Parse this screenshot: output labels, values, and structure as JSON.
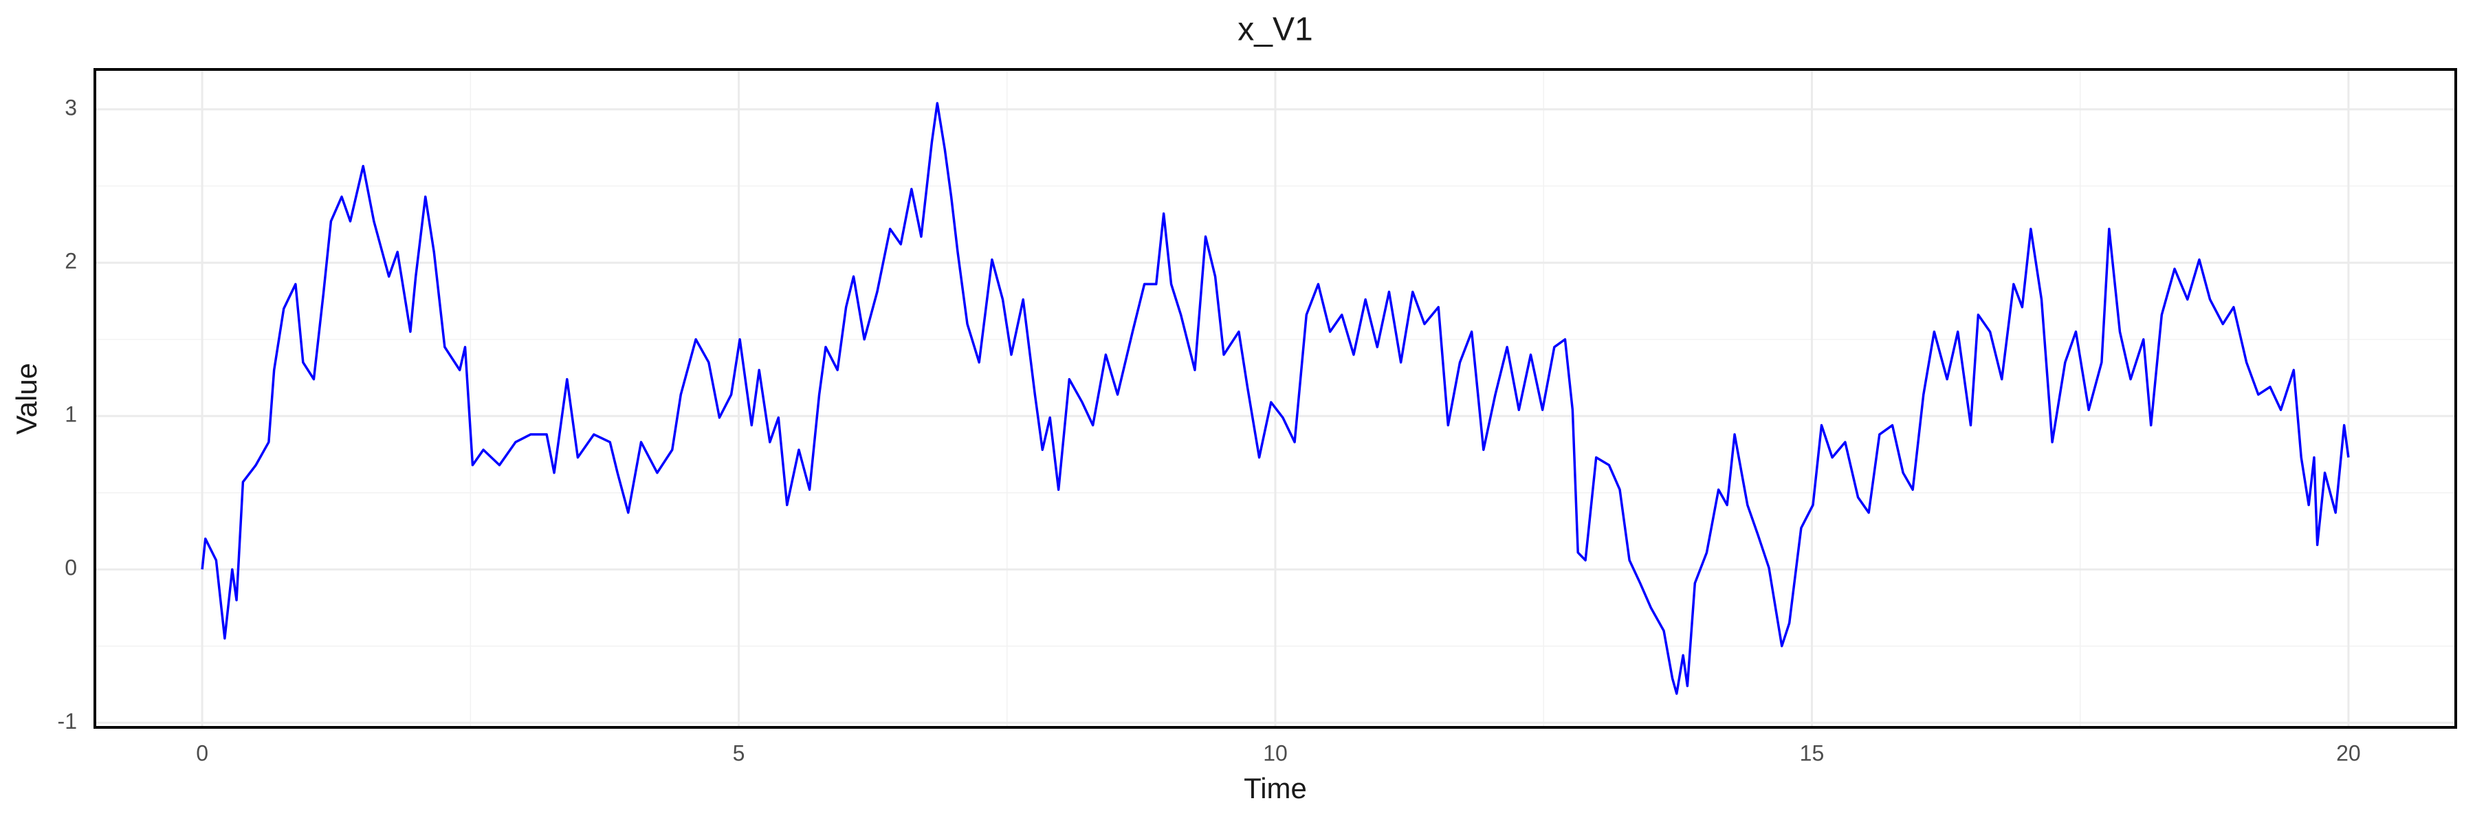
{
  "chart_data": {
    "type": "line",
    "title": "x_V1",
    "xlabel": "Time",
    "ylabel": "Value",
    "xlim": [
      -1,
      21
    ],
    "ylim": [
      -1.03,
      3.26
    ],
    "xticks": [
      0,
      5,
      10,
      15,
      20
    ],
    "yticks": [
      -1,
      0,
      1,
      2,
      3
    ],
    "xminor": [
      2.5,
      7.5,
      12.5,
      17.5
    ],
    "yminor": [
      -0.5,
      0.5,
      1.5,
      2.5
    ],
    "grid": true,
    "frame": true,
    "series": [
      {
        "name": "x_V1",
        "color": "#0000ff",
        "x": [
          0,
          0.03,
          0.13,
          0.21,
          0.28,
          0.32,
          0.38,
          0.5,
          0.62,
          0.67,
          0.76,
          0.87,
          0.94,
          1.04,
          1.13,
          1.2,
          1.3,
          1.38,
          1.5,
          1.6,
          1.74,
          1.82,
          1.94,
          1.99,
          2.08,
          2.16,
          2.26,
          2.4,
          2.45,
          2.52,
          2.62,
          2.77,
          2.92,
          3.06,
          3.21,
          3.28,
          3.4,
          3.5,
          3.65,
          3.8,
          3.87,
          3.97,
          4.09,
          4.24,
          4.38,
          4.46,
          4.6,
          4.72,
          4.82,
          4.93,
          5.01,
          5.12,
          5.19,
          5.29,
          5.37,
          5.45,
          5.56,
          5.66,
          5.75,
          5.81,
          5.92,
          6.0,
          6.07,
          6.17,
          6.29,
          6.41,
          6.51,
          6.61,
          6.7,
          6.8,
          6.85,
          6.92,
          6.98,
          7.04,
          7.13,
          7.24,
          7.36,
          7.46,
          7.54,
          7.65,
          7.76,
          7.83,
          7.9,
          7.98,
          8.08,
          8.2,
          8.3,
          8.42,
          8.53,
          8.67,
          8.78,
          8.89,
          8.96,
          9.03,
          9.12,
          9.25,
          9.35,
          9.44,
          9.52,
          9.66,
          9.74,
          9.85,
          9.96,
          10.07,
          10.18,
          10.29,
          10.4,
          10.51,
          10.62,
          10.73,
          10.84,
          10.95,
          11.06,
          11.17,
          11.28,
          11.39,
          11.52,
          11.61,
          11.72,
          11.83,
          11.94,
          12.05,
          12.16,
          12.27,
          12.38,
          12.49,
          12.6,
          12.7,
          12.77,
          12.82,
          12.89,
          12.99,
          13.11,
          13.21,
          13.3,
          13.4,
          13.5,
          13.62,
          13.7,
          13.74,
          13.8,
          13.84,
          13.91,
          14.02,
          14.13,
          14.21,
          14.28,
          14.4,
          14.5,
          14.6,
          14.72,
          14.79,
          14.9,
          15.01,
          15.09,
          15.19,
          15.31,
          15.43,
          15.53,
          15.63,
          15.75,
          15.85,
          15.94,
          16.04,
          16.14,
          16.26,
          16.36,
          16.48,
          16.55,
          16.66,
          16.77,
          16.88,
          16.96,
          17.04,
          17.14,
          17.24,
          17.36,
          17.46,
          17.58,
          17.7,
          17.77,
          17.87,
          17.97,
          18.09,
          18.16,
          18.26,
          18.38,
          18.5,
          18.61,
          18.71,
          18.83,
          18.93,
          19.05,
          19.16,
          19.27,
          19.37,
          19.49,
          19.56,
          19.63,
          19.68,
          19.71,
          19.78,
          19.88,
          19.96,
          20.0
        ],
        "values": [
          0,
          0.2,
          0.06,
          -0.45,
          0,
          -0.2,
          0.57,
          0.68,
          0.83,
          1.3,
          1.7,
          1.86,
          1.35,
          1.24,
          1.8,
          2.27,
          2.43,
          2.27,
          2.63,
          2.27,
          1.91,
          2.07,
          1.55,
          1.91,
          2.43,
          2.07,
          1.45,
          1.3,
          1.45,
          0.68,
          0.78,
          0.68,
          0.83,
          0.88,
          0.88,
          0.63,
          1.24,
          0.73,
          0.88,
          0.83,
          0.63,
          0.37,
          0.83,
          0.63,
          0.78,
          1.14,
          1.5,
          1.35,
          0.99,
          1.14,
          1.5,
          0.94,
          1.3,
          0.83,
          0.99,
          0.42,
          0.78,
          0.52,
          1.14,
          1.45,
          1.3,
          1.71,
          1.91,
          1.5,
          1.81,
          2.22,
          2.12,
          2.48,
          2.17,
          2.79,
          3.04,
          2.74,
          2.43,
          2.07,
          1.6,
          1.35,
          2.02,
          1.76,
          1.4,
          1.76,
          1.14,
          0.78,
          0.99,
          0.52,
          1.24,
          1.09,
          0.94,
          1.4,
          1.14,
          1.55,
          1.86,
          1.86,
          2.32,
          1.86,
          1.66,
          1.3,
          2.17,
          1.91,
          1.4,
          1.55,
          1.19,
          0.73,
          1.09,
          0.99,
          0.83,
          1.66,
          1.86,
          1.55,
          1.66,
          1.4,
          1.76,
          1.45,
          1.81,
          1.35,
          1.81,
          1.6,
          1.71,
          0.94,
          1.35,
          1.55,
          0.78,
          1.14,
          1.45,
          1.04,
          1.4,
          1.04,
          1.45,
          1.5,
          1.04,
          0.11,
          0.06,
          0.73,
          0.68,
          0.52,
          0.06,
          -0.09,
          -0.25,
          -0.4,
          -0.71,
          -0.81,
          -0.56,
          -0.76,
          -0.09,
          0.11,
          0.52,
          0.42,
          0.88,
          0.42,
          0.22,
          0.01,
          -0.5,
          -0.35,
          0.27,
          0.42,
          0.94,
          0.73,
          0.83,
          0.47,
          0.37,
          0.88,
          0.94,
          0.63,
          0.52,
          1.14,
          1.55,
          1.24,
          1.55,
          0.94,
          1.66,
          1.55,
          1.24,
          1.86,
          1.71,
          2.22,
          1.76,
          0.83,
          1.35,
          1.55,
          1.04,
          1.35,
          2.22,
          1.55,
          1.24,
          1.5,
          0.94,
          1.66,
          1.96,
          1.76,
          2.02,
          1.76,
          1.6,
          1.71,
          1.35,
          1.14,
          1.19,
          1.04,
          1.3,
          0.73,
          0.42,
          0.73,
          0.16,
          0.63,
          0.37,
          0.94,
          0.73
        ]
      }
    ]
  }
}
